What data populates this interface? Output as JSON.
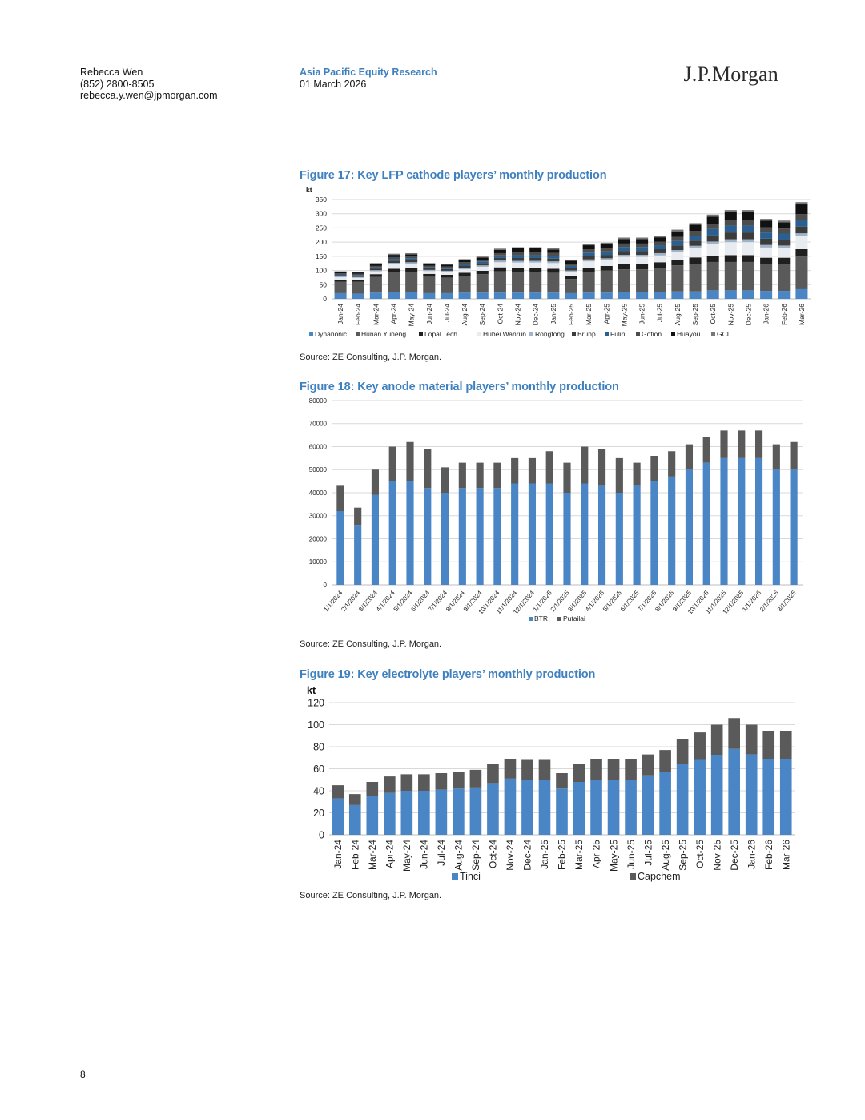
{
  "header": {
    "author_name": "Rebecca Wen",
    "author_phone": "(852) 2800-8505",
    "author_email": "rebecca.y.wen@jpmorgan.com",
    "section": "Asia Pacific Equity Research",
    "date": "01 March 2026",
    "logo_text": "J.P.Morgan"
  },
  "page_number": "8",
  "chart_data": [
    {
      "type": "bar",
      "stacked": true,
      "title": "Figure 17: Key LFP cathode players’ monthly production",
      "ylabel": "kt",
      "ylim": [
        0,
        350
      ],
      "yticks": [
        "0",
        "50",
        "100",
        "150",
        "200",
        "250",
        "300",
        "350"
      ],
      "categories": [
        "Jan-24",
        "Feb-24",
        "Mar-24",
        "Apr-24",
        "May-24",
        "Jun-24",
        "Jul-24",
        "Aug-24",
        "Sep-24",
        "Oct-24",
        "Nov-24",
        "Dec-24",
        "Jan-25",
        "Feb-25",
        "Mar-25",
        "Apr-25",
        "May-25",
        "Jun-25",
        "Jul-25",
        "Aug-25",
        "Sep-25",
        "Oct-25",
        "Nov-25",
        "Dec-25",
        "Jan-26",
        "Feb-26",
        "Mar-26"
      ],
      "series": [
        {
          "name": "Dynanonic",
          "color": "#4a86c5",
          "values": [
            20,
            18,
            22,
            24,
            24,
            20,
            20,
            22,
            22,
            22,
            22,
            22,
            22,
            20,
            22,
            22,
            24,
            24,
            24,
            26,
            26,
            30,
            30,
            30,
            28,
            28,
            34
          ]
        },
        {
          "name": "Hunan Yuneng",
          "color": "#5a5a5a",
          "values": [
            40,
            42,
            55,
            70,
            72,
            58,
            55,
            58,
            65,
            75,
            72,
            72,
            70,
            50,
            72,
            78,
            80,
            80,
            85,
            92,
            98,
            100,
            100,
            100,
            95,
            95,
            115
          ]
        },
        {
          "name": "Lopal Tech",
          "color": "#1f1f1f",
          "values": [
            8,
            8,
            10,
            12,
            12,
            10,
            10,
            12,
            12,
            14,
            14,
            14,
            14,
            10,
            16,
            16,
            20,
            20,
            20,
            20,
            22,
            22,
            24,
            24,
            22,
            22,
            26
          ]
        },
        {
          "name": "Hubei Wanrun",
          "color": "#e8ebf0",
          "values": [
            8,
            6,
            10,
            16,
            16,
            10,
            10,
            12,
            14,
            18,
            20,
            20,
            20,
            16,
            22,
            20,
            24,
            24,
            24,
            26,
            32,
            40,
            46,
            46,
            36,
            34,
            46
          ]
        },
        {
          "name": "Rongtong",
          "color": "#9fb3c9",
          "values": [
            3,
            3,
            4,
            5,
            5,
            4,
            4,
            5,
            5,
            6,
            6,
            6,
            6,
            4,
            7,
            7,
            7,
            7,
            8,
            8,
            9,
            10,
            10,
            10,
            9,
            9,
            10
          ]
        },
        {
          "name": "Brunp",
          "color": "#3c3c3c",
          "values": [
            4,
            4,
            6,
            8,
            8,
            6,
            6,
            8,
            8,
            10,
            10,
            10,
            10,
            8,
            12,
            12,
            14,
            14,
            14,
            16,
            18,
            22,
            24,
            24,
            22,
            20,
            24
          ]
        },
        {
          "name": "Fulin",
          "color": "#2b5f8f",
          "values": [
            3,
            3,
            4,
            6,
            6,
            4,
            4,
            6,
            6,
            8,
            10,
            10,
            10,
            8,
            12,
            12,
            14,
            14,
            14,
            16,
            18,
            22,
            24,
            24,
            22,
            22,
            24
          ]
        },
        {
          "name": "Gotion",
          "color": "#4d4d4d",
          "values": [
            4,
            4,
            5,
            6,
            6,
            5,
            5,
            6,
            6,
            8,
            10,
            10,
            10,
            8,
            12,
            12,
            12,
            12,
            12,
            14,
            16,
            18,
            20,
            20,
            18,
            18,
            20
          ]
        },
        {
          "name": "Huayou",
          "color": "#111111",
          "values": [
            5,
            5,
            7,
            8,
            8,
            6,
            6,
            8,
            8,
            12,
            14,
            14,
            12,
            10,
            14,
            14,
            16,
            16,
            16,
            20,
            22,
            26,
            28,
            28,
            24,
            22,
            34
          ]
        },
        {
          "name": "GCL",
          "color": "#777777",
          "values": [
            2,
            2,
            3,
            4,
            4,
            3,
            3,
            3,
            3,
            4,
            4,
            4,
            4,
            3,
            5,
            5,
            5,
            5,
            5,
            6,
            6,
            7,
            7,
            7,
            6,
            6,
            8
          ]
        }
      ],
      "source": "Source: ZE Consulting, J.P. Morgan."
    },
    {
      "type": "bar",
      "stacked": true,
      "title": "Figure 18: Key anode material players’ monthly production",
      "ylim": [
        0,
        80000
      ],
      "yticks": [
        "0",
        "10000",
        "20000",
        "30000",
        "40000",
        "50000",
        "60000",
        "70000",
        "80000"
      ],
      "categories": [
        "1/1/2024",
        "2/1/2024",
        "3/1/2024",
        "4/1/2024",
        "5/1/2024",
        "6/1/2024",
        "7/1/2024",
        "8/1/2024",
        "9/1/2024",
        "10/1/2024",
        "11/1/2024",
        "12/1/2024",
        "1/1/2025",
        "2/1/2025",
        "3/1/2025",
        "4/1/2025",
        "5/1/2025",
        "6/1/2025",
        "7/1/2025",
        "8/1/2025",
        "9/1/2025",
        "10/1/2025",
        "11/1/2025",
        "12/1/2025",
        "1/1/2026",
        "2/1/2026",
        "3/1/2026"
      ],
      "series": [
        {
          "name": "BTR",
          "color": "#4a86c5",
          "values": [
            32000,
            26000,
            39000,
            45000,
            45000,
            42000,
            40000,
            42000,
            42000,
            42000,
            44000,
            44000,
            44000,
            40000,
            44000,
            43000,
            40000,
            43000,
            45000,
            47000,
            50000,
            53000,
            55000,
            55000,
            55000,
            50000,
            50000
          ]
        },
        {
          "name": "Putailai",
          "color": "#5a5a5a",
          "values": [
            11000,
            7500,
            11000,
            15000,
            17000,
            17000,
            11000,
            11000,
            11000,
            11000,
            11000,
            11000,
            14000,
            13000,
            16000,
            16000,
            15000,
            10000,
            11000,
            11000,
            11000,
            11000,
            12000,
            12000,
            12000,
            11000,
            12000
          ]
        }
      ],
      "source": "Source: ZE Consulting, J.P. Morgan."
    },
    {
      "type": "bar",
      "stacked": true,
      "title": "Figure 19: Key electrolyte players’ monthly production",
      "ylabel": "kt",
      "ylim": [
        0,
        120
      ],
      "yticks": [
        "0",
        "20",
        "40",
        "60",
        "80",
        "100",
        "120"
      ],
      "categories": [
        "Jan-24",
        "Feb-24",
        "Mar-24",
        "Apr-24",
        "May-24",
        "Jun-24",
        "Jul-24",
        "Aug-24",
        "Sep-24",
        "Oct-24",
        "Nov-24",
        "Dec-24",
        "Jan-25",
        "Feb-25",
        "Mar-25",
        "Apr-25",
        "May-25",
        "Jun-25",
        "Jul-25",
        "Aug-25",
        "Sep-25",
        "Oct-25",
        "Nov-25",
        "Dec-25",
        "Jan-26",
        "Feb-26",
        "Mar-26"
      ],
      "series": [
        {
          "name": "Tinci",
          "color": "#4a86c5",
          "values": [
            33,
            27,
            35,
            38,
            40,
            40,
            41,
            42,
            43,
            47,
            51,
            50,
            50,
            42,
            48,
            50,
            50,
            50,
            54,
            57,
            64,
            68,
            72,
            78,
            73,
            69,
            69
          ]
        },
        {
          "name": "Capchem",
          "color": "#5a5a5a",
          "values": [
            12,
            10,
            13,
            15,
            15,
            15,
            15,
            15,
            16,
            17,
            18,
            18,
            18,
            14,
            16,
            19,
            19,
            19,
            19,
            20,
            23,
            25,
            28,
            28,
            27,
            25,
            25
          ]
        }
      ],
      "source": "Source: ZE Consulting, J.P. Morgan."
    }
  ]
}
